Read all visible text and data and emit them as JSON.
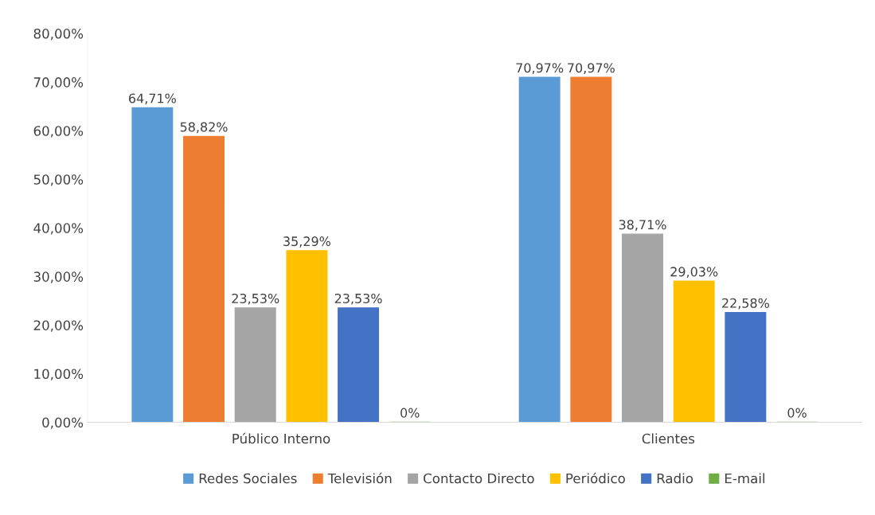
{
  "chart_data": {
    "type": "bar",
    "categories": [
      "Público Interno",
      "Clientes"
    ],
    "series": [
      {
        "name": "Redes Sociales",
        "color": "#5b9bd5",
        "values": [
          64.71,
          70.97
        ],
        "value_labels": [
          "64,71%",
          "70,97%"
        ]
      },
      {
        "name": "Televisión",
        "color": "#ed7d31",
        "values": [
          58.82,
          70.97
        ],
        "value_labels": [
          "58,82%",
          "70,97%"
        ]
      },
      {
        "name": "Contacto Directo",
        "color": "#a5a5a5",
        "values": [
          23.53,
          38.71
        ],
        "value_labels": [
          "23,53%",
          "38,71%"
        ]
      },
      {
        "name": "Periódico",
        "color": "#ffc000",
        "values": [
          35.29,
          29.03
        ],
        "value_labels": [
          "35,29%",
          "29,03%"
        ]
      },
      {
        "name": "Radio",
        "color": "#4472c4",
        "values": [
          23.53,
          22.58
        ],
        "value_labels": [
          "23,53%",
          "22,58%"
        ]
      },
      {
        "name": "E-mail",
        "color": "#70ad47",
        "values": [
          0,
          0
        ],
        "value_labels": [
          "0%",
          "0%"
        ]
      }
    ],
    "ylim": [
      0,
      80
    ],
    "yticks": [
      {
        "value": 0,
        "label": "0,00%"
      },
      {
        "value": 10,
        "label": "10,00%"
      },
      {
        "value": 20,
        "label": "20,00%"
      },
      {
        "value": 30,
        "label": "30,00%"
      },
      {
        "value": 40,
        "label": "40,00%"
      },
      {
        "value": 50,
        "label": "50,00%"
      },
      {
        "value": 60,
        "label": "60,00%"
      },
      {
        "value": 70,
        "label": "70,00%"
      },
      {
        "value": 80,
        "label": "80,00%"
      }
    ],
    "grid": false,
    "legend": "bottom"
  }
}
